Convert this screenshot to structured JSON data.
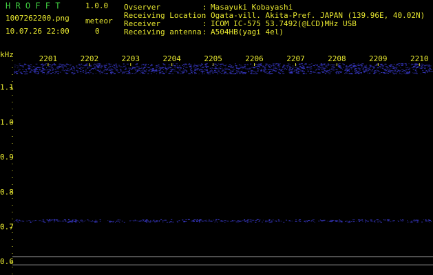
{
  "header": {
    "logo": "H R O F F T",
    "version": "1.0.0",
    "file": "1007262200.png",
    "event_label": "meteor",
    "datetime": "10.07.26 22:00",
    "count": 0,
    "separator": ":",
    "info": [
      {
        "label": "Ovserver",
        "value": "Masayuki Kobayashi"
      },
      {
        "label": "Receiving Location",
        "value": "Ogata-vill. Akita-Pref. JAPAN (139.96E, 40.02N)"
      },
      {
        "label": "Receiver",
        "value": "ICOM IC-575 53.7492(@LCD)MHz USB"
      },
      {
        "label": "Receiving antenna",
        "value": "A504HB(yagi 4el)"
      }
    ]
  },
  "chart_data": {
    "type": "spectrogram",
    "y_label": "kHz",
    "xlim": [
      2200,
      2210.33
    ],
    "xticks": [
      2201,
      2202,
      2203,
      2204,
      2205,
      2206,
      2207,
      2208,
      2209,
      2210
    ],
    "ylim": [
      0.563,
      1.178
    ],
    "yticks": [
      {
        "value": 1.1,
        "label": "1.1"
      },
      {
        "value": 1.0,
        "label": "1.0"
      },
      {
        "value": 0.9,
        "label": "0.9"
      },
      {
        "value": 0.8,
        "label": "0.8"
      },
      {
        "value": 0.7,
        "label": "0.7"
      },
      {
        "value": 0.6,
        "label": "0.6"
      }
    ],
    "bands": [
      {
        "from": 1.14,
        "to": 1.17,
        "color": "#3a3acc"
      },
      {
        "from": 0.715,
        "to": 0.723,
        "color": "#3a3acc"
      }
    ],
    "lines": [
      {
        "value": 0.615,
        "color": "#9a9a9a"
      },
      {
        "value": 0.592,
        "color": "#9a9a9a"
      }
    ]
  }
}
